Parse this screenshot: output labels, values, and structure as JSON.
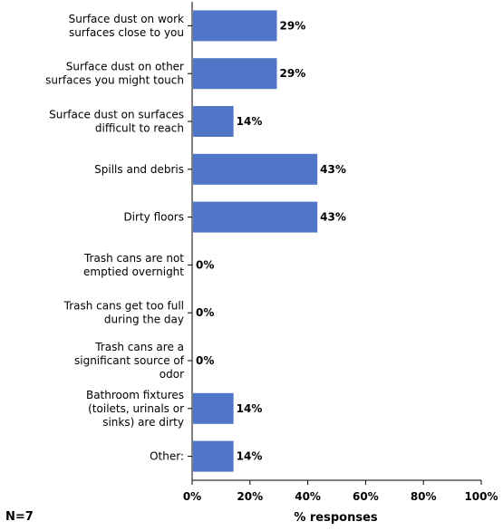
{
  "chart_data": {
    "type": "bar",
    "orientation": "horizontal",
    "categories": [
      [
        "Surface dust on work",
        "surfaces close to you"
      ],
      [
        "Surface dust on other",
        "surfaces you might touch"
      ],
      [
        "Surface dust on surfaces",
        "difficult to reach"
      ],
      [
        "Spills and debris"
      ],
      [
        "Dirty floors"
      ],
      [
        "Trash cans are not",
        "emptied overnight"
      ],
      [
        "Trash cans get too full",
        "during the day"
      ],
      [
        "Trash cans are a",
        "significant source of",
        "odor"
      ],
      [
        "Bathroom fixtures",
        "(toilets, urinals or",
        "sinks) are dirty"
      ],
      [
        "Other:"
      ]
    ],
    "values": [
      29,
      29,
      14,
      43,
      43,
      0,
      0,
      0,
      14,
      14
    ],
    "value_labels": [
      "29%",
      "29%",
      "14%",
      "43%",
      "43%",
      "0%",
      "0%",
      "0%",
      "14%",
      "14%"
    ],
    "xlabel": "% responses",
    "xlim": [
      0,
      100
    ],
    "xticks": [
      "0%",
      "20%",
      "40%",
      "60%",
      "80%",
      "100%"
    ],
    "bar_color": "#4f76c7",
    "grid": false
  },
  "note": "N=7"
}
